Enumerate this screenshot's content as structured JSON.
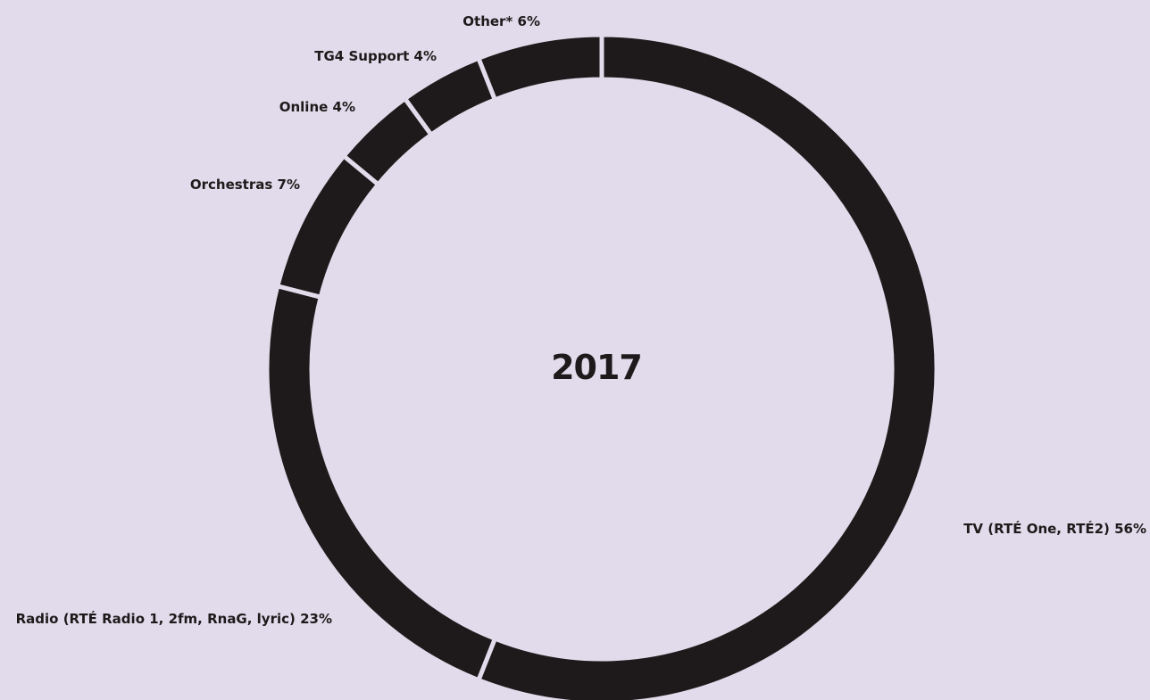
{
  "chart_data": {
    "type": "pie",
    "center_label": "2017",
    "slices": [
      {
        "label": "TV (RTÉ One, RTÉ2)",
        "value": 56,
        "value_text": "56%",
        "text": "TV (RTÉ One, RTÉ2)  56%"
      },
      {
        "label": "Radio (RTÉ Radio 1, 2fm, RnaG, lyric)",
        "value": 23,
        "value_text": "23%",
        "text": "Radio (RTÉ Radio 1, 2fm, RnaG, lyric) 23%"
      },
      {
        "label": "Orchestras",
        "value": 7,
        "value_text": "7%",
        "text": "Orchestras 7%"
      },
      {
        "label": "Online",
        "value": 4,
        "value_text": "4%",
        "text": "Online 4%"
      },
      {
        "label": "TG4 Support",
        "value": 4,
        "value_text": "4%",
        "text": "TG4 Support 4%"
      },
      {
        "label": "Other*",
        "value": 6,
        "value_text": "6%",
        "text": "Other* 6%"
      }
    ]
  },
  "colors": {
    "background": "#e2dbeb",
    "ring": "#1e1a1b",
    "gap": "#e2dbeb",
    "text": "#1e1a1b"
  }
}
